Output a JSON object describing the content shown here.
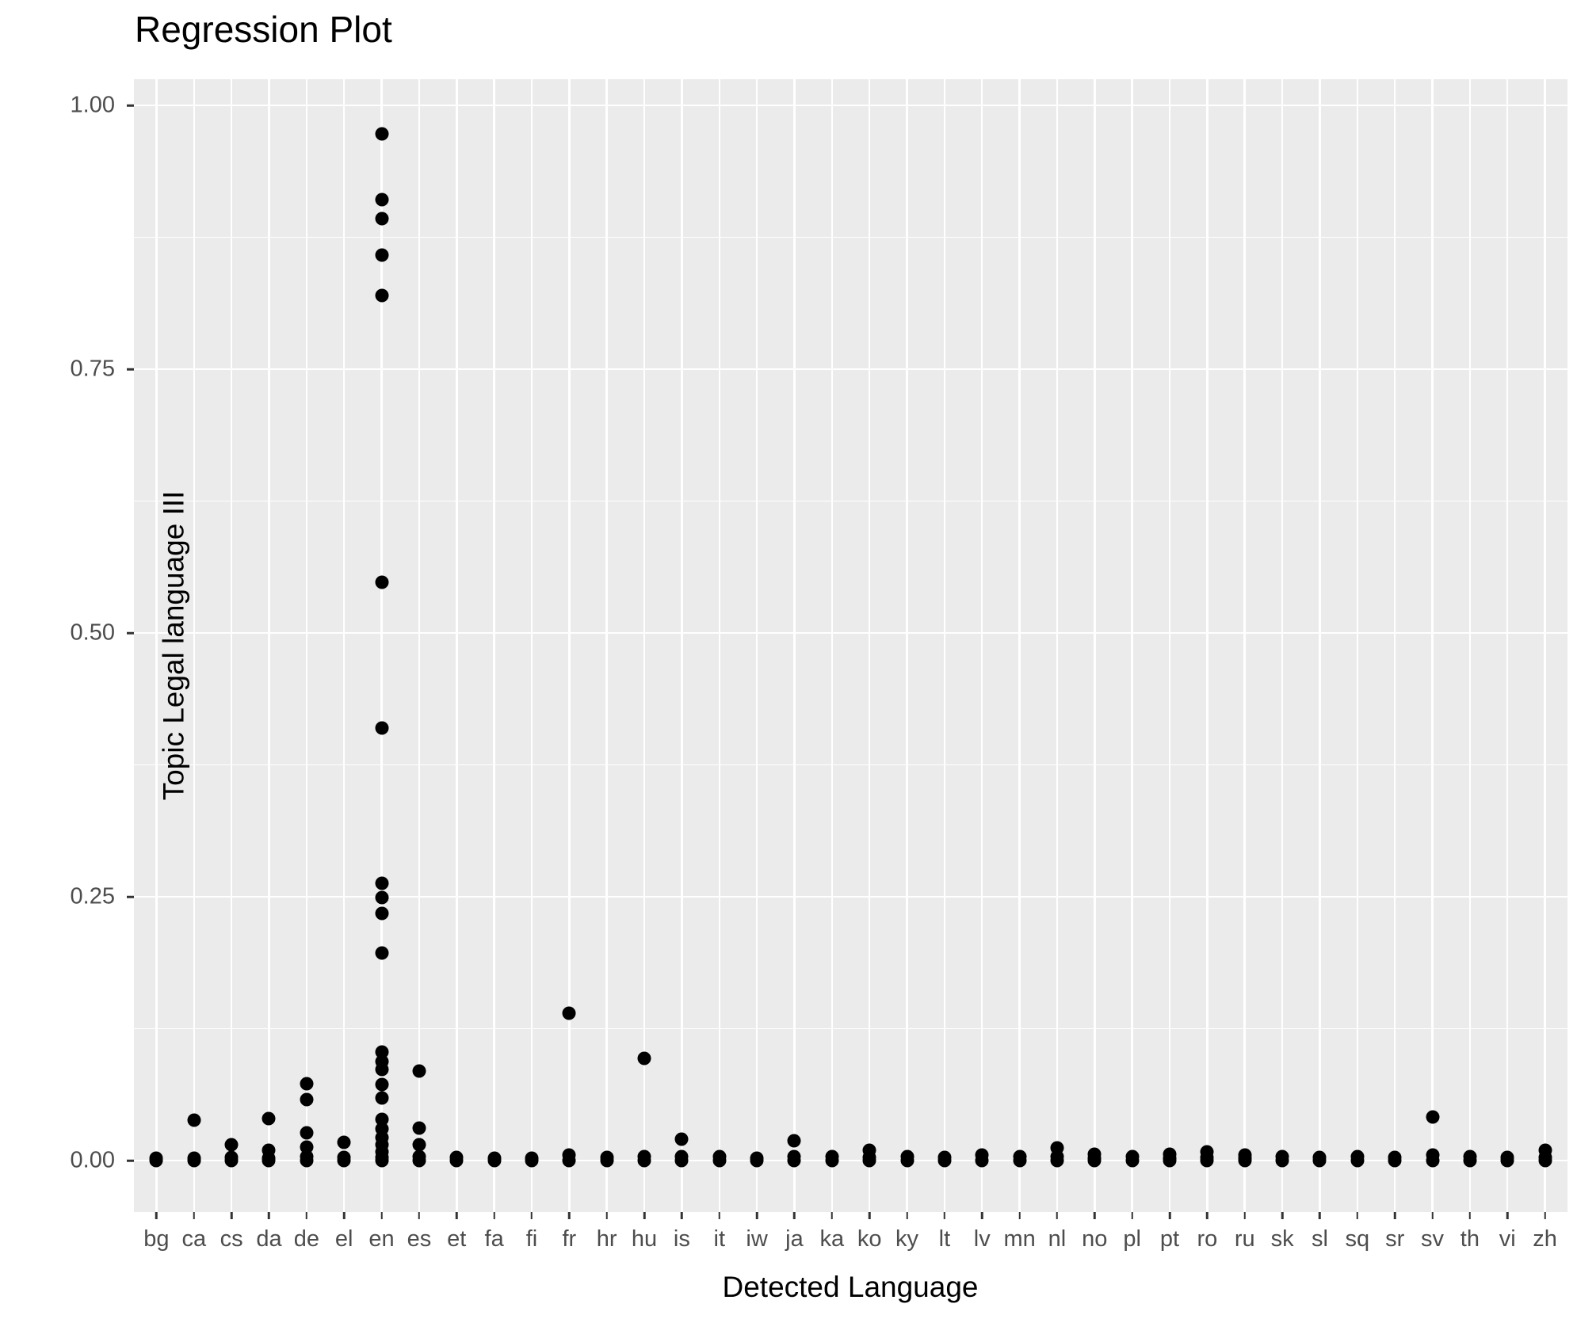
{
  "chart_data": {
    "type": "scatter",
    "title": "Regression Plot",
    "xlabel": "Detected Language",
    "ylabel": "Topic Legal language III",
    "legend": "none",
    "grid": "on",
    "panel_background": "#EBEBEB",
    "gridline_color": "#FFFFFF",
    "point_color": "#000000",
    "tick_label_color": "#4D4D4D",
    "axis_title_color": "#000000",
    "ylim": [
      -0.049,
      1.022
    ],
    "y_major_ticks": [
      {
        "label": "1.00",
        "value": 1.0
      },
      {
        "label": "0.75",
        "value": 0.75
      },
      {
        "label": "0.50",
        "value": 0.5
      },
      {
        "label": "0.25",
        "value": 0.25
      },
      {
        "label": "0.00",
        "value": 0.0
      }
    ],
    "y_minor_ticks": [
      0.125,
      0.375,
      0.625,
      0.875
    ],
    "x_categories": [
      "bg",
      "ca",
      "cs",
      "da",
      "de",
      "el",
      "en",
      "es",
      "et",
      "fa",
      "fi",
      "fr",
      "hr",
      "hu",
      "is",
      "it",
      "iw",
      "ja",
      "ka",
      "ko",
      "ky",
      "lt",
      "lv",
      "mn",
      "nl",
      "no",
      "pl",
      "pt",
      "ro",
      "ru",
      "sk",
      "sl",
      "sq",
      "sr",
      "sv",
      "th",
      "vi",
      "zh"
    ],
    "series": [
      {
        "category": "bg",
        "values": [
          0.002,
          0
        ]
      },
      {
        "category": "ca",
        "values": [
          0.038,
          0.002,
          0
        ]
      },
      {
        "category": "cs",
        "values": [
          0.015,
          0.003,
          0
        ]
      },
      {
        "category": "da",
        "values": [
          0.04,
          0.01,
          0.002,
          0
        ]
      },
      {
        "category": "de",
        "values": [
          0.073,
          0.058,
          0.026,
          0.013,
          0.004,
          0
        ]
      },
      {
        "category": "el",
        "values": [
          0.017,
          0.003,
          0
        ]
      },
      {
        "category": "en",
        "values": [
          0.973,
          0.911,
          0.893,
          0.858,
          0.82,
          0.548,
          0.41,
          0.263,
          0.249,
          0.234,
          0.197,
          0.103,
          0.094,
          0.086,
          0.072,
          0.059,
          0.039,
          0.03,
          0.022,
          0.015,
          0.008,
          0.003,
          0
        ]
      },
      {
        "category": "es",
        "values": [
          0.085,
          0.031,
          0.015,
          0.004,
          0
        ]
      },
      {
        "category": "et",
        "values": [
          0.003,
          0
        ]
      },
      {
        "category": "fa",
        "values": [
          0.002,
          0
        ]
      },
      {
        "category": "fi",
        "values": [
          0.002,
          0
        ]
      },
      {
        "category": "fr",
        "values": [
          0.14,
          0.005,
          0
        ]
      },
      {
        "category": "hr",
        "values": [
          0.003,
          0
        ]
      },
      {
        "category": "hu",
        "values": [
          0.097,
          0.004,
          0
        ]
      },
      {
        "category": "is",
        "values": [
          0.02,
          0.004,
          0
        ]
      },
      {
        "category": "it",
        "values": [
          0.004,
          0
        ]
      },
      {
        "category": "iw",
        "values": [
          0.002,
          0
        ]
      },
      {
        "category": "ja",
        "values": [
          0.019,
          0.004,
          0
        ]
      },
      {
        "category": "ka",
        "values": [
          0.004,
          0
        ]
      },
      {
        "category": "ko",
        "values": [
          0.01,
          0.003,
          0
        ]
      },
      {
        "category": "ky",
        "values": [
          0.004,
          0
        ]
      },
      {
        "category": "lt",
        "values": [
          0.003,
          0
        ]
      },
      {
        "category": "lv",
        "values": [
          0.005,
          0
        ]
      },
      {
        "category": "mn",
        "values": [
          0.004,
          0
        ]
      },
      {
        "category": "nl",
        "values": [
          0.012,
          0.004,
          0
        ]
      },
      {
        "category": "no",
        "values": [
          0.006,
          0.002,
          0
        ]
      },
      {
        "category": "pl",
        "values": [
          0.004,
          0
        ]
      },
      {
        "category": "pt",
        "values": [
          0.006,
          0.002,
          0
        ]
      },
      {
        "category": "ro",
        "values": [
          0.008,
          0.003,
          0
        ]
      },
      {
        "category": "ru",
        "values": [
          0.005,
          0.002,
          0
        ]
      },
      {
        "category": "sk",
        "values": [
          0.004,
          0
        ]
      },
      {
        "category": "sl",
        "values": [
          0.003,
          0
        ]
      },
      {
        "category": "sq",
        "values": [
          0.004,
          0
        ]
      },
      {
        "category": "sr",
        "values": [
          0.003,
          0
        ]
      },
      {
        "category": "sv",
        "values": [
          0.041,
          0.005,
          0
        ]
      },
      {
        "category": "th",
        "values": [
          0.004,
          0
        ]
      },
      {
        "category": "vi",
        "values": [
          0.003,
          0
        ]
      },
      {
        "category": "zh",
        "values": [
          0.01,
          0.003,
          0
        ]
      }
    ]
  }
}
